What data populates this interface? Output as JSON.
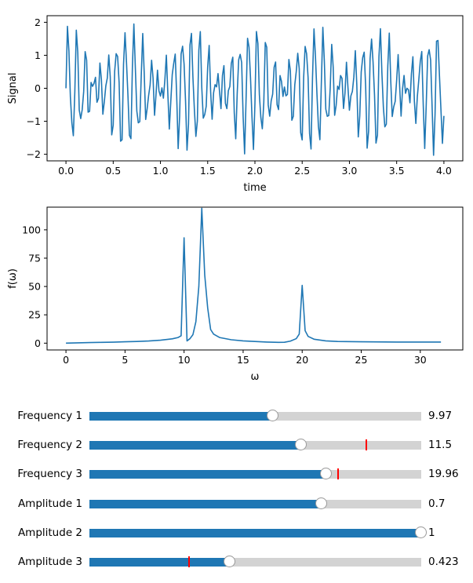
{
  "chart_data": [
    {
      "type": "line",
      "xlabel": "time",
      "ylabel": "Signal",
      "xlim": [
        -0.2,
        4.2
      ],
      "ylim": [
        -2.2,
        2.2
      ],
      "xticks": [
        0.0,
        0.5,
        1.0,
        1.5,
        2.0,
        2.5,
        3.0,
        3.5,
        4.0
      ],
      "xtick_labels": [
        "0.0",
        "0.5",
        "1.0",
        "1.5",
        "2.0",
        "2.5",
        "3.0",
        "3.5",
        "4.0"
      ],
      "yticks": [
        -2,
        -1,
        0,
        1,
        2
      ],
      "ytick_labels": [
        "−2",
        "−1",
        "0",
        "1",
        "2"
      ],
      "color": "#1f77b4",
      "series": [
        {
          "x_start": 0,
          "x_end": 4,
          "n_points": 257,
          "components": [
            {
              "frequency": 9.97,
              "amplitude": 0.7
            },
            {
              "frequency": 11.5,
              "amplitude": 1
            },
            {
              "frequency": 19.96,
              "amplitude": 0.423
            }
          ]
        }
      ],
      "grid": false
    },
    {
      "type": "line",
      "xlabel": "ω",
      "ylabel": "f(ω)",
      "xlim": [
        -1.6,
        33.6
      ],
      "ylim": [
        -6,
        120
      ],
      "xticks": [
        0,
        5,
        10,
        15,
        20,
        25,
        30
      ],
      "xtick_labels": [
        "0",
        "5",
        "10",
        "15",
        "20",
        "25",
        "30"
      ],
      "yticks": [
        0,
        25,
        50,
        75,
        100
      ],
      "ytick_labels": [
        "0",
        "25",
        "50",
        "75",
        "100"
      ],
      "color": "#1f77b4",
      "series": [
        {
          "x": [
            0,
            1,
            2,
            3,
            4,
            5,
            6,
            7,
            8,
            9,
            9.5,
            9.75,
            10,
            10.25,
            10.5,
            10.75,
            11,
            11.25,
            11.5,
            11.75,
            12,
            12.25,
            12.5,
            13,
            14,
            15,
            16,
            17,
            18,
            18.5,
            19,
            19.5,
            19.75,
            20,
            20.25,
            20.5,
            21,
            22,
            23,
            25,
            28,
            31.75
          ],
          "y": [
            0,
            0.3,
            0.5,
            0.7,
            0.9,
            1.2,
            1.5,
            1.9,
            2.6,
            3.8,
            5,
            6.5,
            93,
            2,
            4,
            7.5,
            19,
            50,
            119,
            60,
            31,
            12,
            8,
            5,
            3,
            2,
            1.5,
            1,
            0.7,
            0.8,
            1.8,
            4,
            8,
            51,
            11,
            6,
            3.5,
            2,
            1.5,
            1.2,
            1,
            1
          ]
        }
      ],
      "grid": false
    }
  ],
  "sliders": [
    {
      "label": "Frequency 1",
      "min": 0,
      "max": 18,
      "value": 9.97,
      "initial": 9.97,
      "value_text": "9.97"
    },
    {
      "label": "Frequency 2",
      "min": 0,
      "max": 18,
      "value": 11.5,
      "initial": 15,
      "value_text": "11.5"
    },
    {
      "label": "Frequency 3",
      "min": 0,
      "max": 28,
      "value": 19.96,
      "initial": 21,
      "value_text": "19.96"
    },
    {
      "label": "Amplitude 1",
      "min": 0,
      "max": 1,
      "value": 0.7,
      "initial": 0.7,
      "value_text": "0.7"
    },
    {
      "label": "Amplitude 2",
      "min": 0,
      "max": 1,
      "value": 1,
      "initial": 1,
      "value_text": "1"
    },
    {
      "label": "Amplitude 3",
      "min": 0,
      "max": 1,
      "value": 0.423,
      "initial": 0.3,
      "value_text": "0.423"
    }
  ]
}
